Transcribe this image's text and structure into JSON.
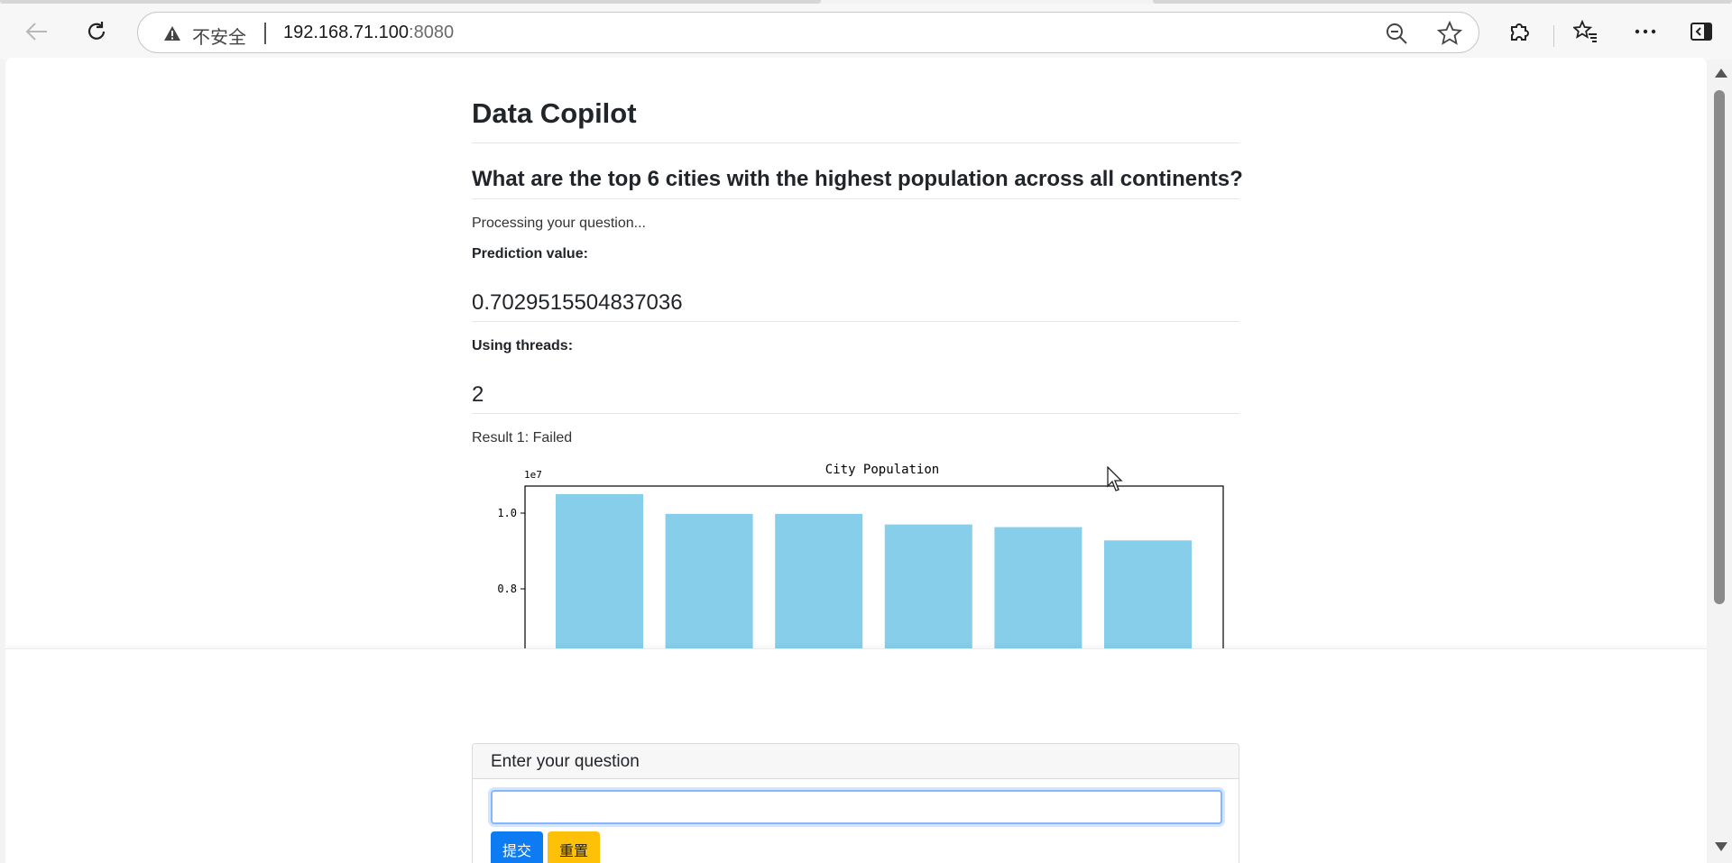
{
  "browser": {
    "insecure_label": "不安全",
    "url_host": "192.168.71.100",
    "url_port": ":8080"
  },
  "page": {
    "title": "Data Copilot",
    "question": "What are the top 6 cities with the highest population across all continents?",
    "processing": "Processing your question...",
    "prediction_label": "Prediction value:",
    "prediction_value": "0.7029515504837036",
    "threads_label": "Using threads:",
    "threads_value": "2",
    "result_text": "Result 1: Failed"
  },
  "chart_data": {
    "type": "bar",
    "title": "City Population",
    "offset_label": "1e7",
    "categories": [
      "",
      "",
      "",
      "",
      "",
      ""
    ],
    "values": [
      10500000,
      9980000,
      9980000,
      9700000,
      9630000,
      9280000
    ],
    "yticks": [
      0.8,
      1.0
    ],
    "ytick_labels": [
      "0.8",
      "1.0"
    ],
    "color": "#87ceeb",
    "grid": false
  },
  "form": {
    "card_title": "Enter your question",
    "input_value": "",
    "submit_label": "提交",
    "reset_label": "重置",
    "submit_color": "#0d7cf2",
    "reset_color": "#ffc107"
  }
}
